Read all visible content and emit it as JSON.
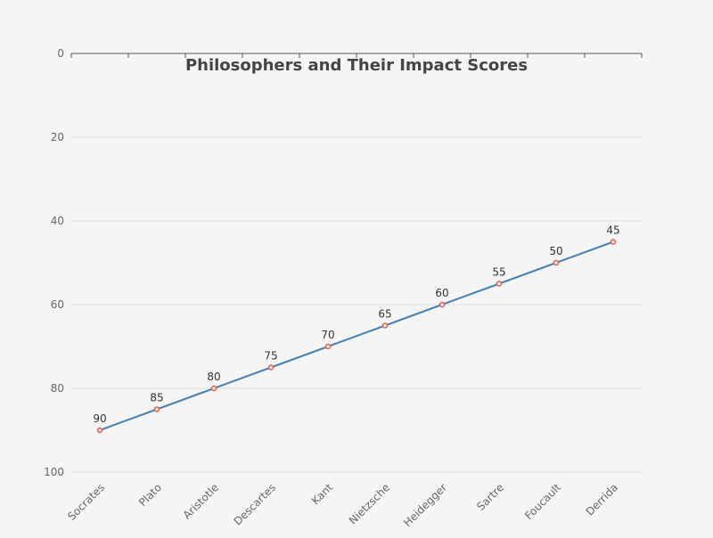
{
  "chart_data": {
    "type": "line",
    "title": "Philosophers and Their Impact Scores",
    "xlabel": "",
    "ylabel": "",
    "categories": [
      "Socrates",
      "Plato",
      "Aristotle",
      "Descartes",
      "Kant",
      "Nietzsche",
      "Heidegger",
      "Sartre",
      "Foucault",
      "Derrida"
    ],
    "series": [
      {
        "values": [
          90,
          85,
          80,
          75,
          70,
          65,
          60,
          55,
          50,
          45
        ]
      }
    ],
    "ylim": [
      0,
      100
    ],
    "y_inverted": true,
    "yticks": [
      "0",
      "20",
      "40",
      "60",
      "80",
      "100"
    ],
    "grid": true,
    "data_labels": true,
    "colors": {
      "line": "#4682b4",
      "marker": "#e8563f",
      "grid": "#e0e0e0",
      "axis": "#555555",
      "text": "#333333",
      "tick_text": "#666666"
    }
  }
}
